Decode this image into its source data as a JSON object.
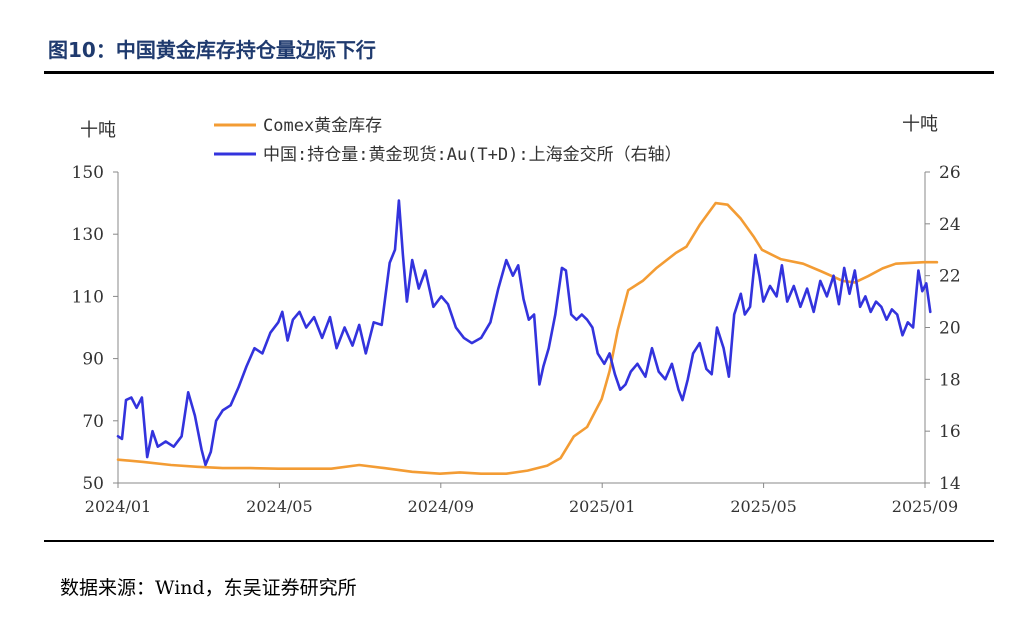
{
  "title": "图10：中国黄金库存持仓量边际下行",
  "source": "数据来源：Wind，东吴证券研究所",
  "chart_data": {
    "type": "line",
    "title": "图10：中国黄金库存持仓量边际下行",
    "x_ticks": [
      "2024/01",
      "2024/05",
      "2024/09",
      "2025/01",
      "2025/05",
      "2025/09"
    ],
    "x_range": [
      "2024-01-01",
      "2025-09-01"
    ],
    "y_left": {
      "unit": "十吨",
      "range": [
        50,
        150
      ],
      "ticks": [
        "50",
        "70",
        "90",
        "110",
        "130",
        "150"
      ]
    },
    "y_right": {
      "unit": "十吨",
      "range": [
        14,
        26
      ],
      "ticks": [
        "14",
        "16",
        "18",
        "20",
        "22",
        "24",
        "26"
      ]
    },
    "legend_position": "top-center",
    "grid": false,
    "series": [
      {
        "name": "Comex黄金库存",
        "axis": "left",
        "color": "#f39c34",
        "points": [
          [
            "2024-01-01",
            57.5
          ],
          [
            "2024-01-20",
            56.8
          ],
          [
            "2024-02-10",
            55.8
          ],
          [
            "2024-03-01",
            55.2
          ],
          [
            "2024-03-20",
            54.8
          ],
          [
            "2024-04-10",
            54.8
          ],
          [
            "2024-05-01",
            54.6
          ],
          [
            "2024-05-20",
            54.6
          ],
          [
            "2024-06-10",
            54.6
          ],
          [
            "2024-07-01",
            55.8
          ],
          [
            "2024-07-20",
            54.8
          ],
          [
            "2024-08-10",
            53.6
          ],
          [
            "2024-08-31",
            53.0
          ],
          [
            "2024-09-15",
            53.4
          ],
          [
            "2024-10-01",
            53.0
          ],
          [
            "2024-10-20",
            53.0
          ],
          [
            "2024-11-05",
            54.0
          ],
          [
            "2024-11-20",
            55.6
          ],
          [
            "2024-11-30",
            58.0
          ],
          [
            "2024-12-10",
            65.0
          ],
          [
            "2024-12-20",
            68.0
          ],
          [
            "2024-12-31",
            77.0
          ],
          [
            "2025-01-06",
            86.0
          ],
          [
            "2025-01-12",
            99.0
          ],
          [
            "2025-01-20",
            112.0
          ],
          [
            "2025-01-31",
            115.0
          ],
          [
            "2025-02-10",
            119.0
          ],
          [
            "2025-02-25",
            124.0
          ],
          [
            "2025-03-05",
            126.0
          ],
          [
            "2025-03-15",
            133.0
          ],
          [
            "2025-03-27",
            140.0
          ],
          [
            "2025-04-05",
            139.5
          ],
          [
            "2025-04-15",
            135.0
          ],
          [
            "2025-04-25",
            129.0
          ],
          [
            "2025-05-01",
            125.0
          ],
          [
            "2025-05-15",
            122.0
          ],
          [
            "2025-06-01",
            120.5
          ],
          [
            "2025-06-15",
            118.0
          ],
          [
            "2025-07-01",
            115.0
          ],
          [
            "2025-07-10",
            114.5
          ],
          [
            "2025-07-20",
            116.5
          ],
          [
            "2025-07-31",
            119.0
          ],
          [
            "2025-08-10",
            120.5
          ],
          [
            "2025-08-31",
            121.0
          ],
          [
            "2025-09-10",
            121.0
          ]
        ]
      },
      {
        "name": "中国:持仓量:黄金现货:Au(T+D):上海金交所（右轴）",
        "axis": "right",
        "color": "#3333dd",
        "points": [
          [
            "2024-01-01",
            15.8
          ],
          [
            "2024-01-04",
            15.7
          ],
          [
            "2024-01-07",
            17.2
          ],
          [
            "2024-01-11",
            17.3
          ],
          [
            "2024-01-15",
            16.9
          ],
          [
            "2024-01-19",
            17.3
          ],
          [
            "2024-01-23",
            15.0
          ],
          [
            "2024-01-27",
            16.0
          ],
          [
            "2024-01-31",
            15.4
          ],
          [
            "2024-02-06",
            15.6
          ],
          [
            "2024-02-12",
            15.4
          ],
          [
            "2024-02-18",
            15.8
          ],
          [
            "2024-02-23",
            17.5
          ],
          [
            "2024-02-28",
            16.6
          ],
          [
            "2024-03-04",
            15.3
          ],
          [
            "2024-03-07",
            14.7
          ],
          [
            "2024-03-11",
            15.2
          ],
          [
            "2024-03-15",
            16.4
          ],
          [
            "2024-03-20",
            16.8
          ],
          [
            "2024-03-26",
            17.0
          ],
          [
            "2024-04-01",
            17.7
          ],
          [
            "2024-04-07",
            18.5
          ],
          [
            "2024-04-13",
            19.2
          ],
          [
            "2024-04-19",
            19.0
          ],
          [
            "2024-04-25",
            19.8
          ],
          [
            "2024-05-01",
            20.2
          ],
          [
            "2024-05-04",
            20.6
          ],
          [
            "2024-05-08",
            19.5
          ],
          [
            "2024-05-12",
            20.3
          ],
          [
            "2024-05-17",
            20.6
          ],
          [
            "2024-05-22",
            20.0
          ],
          [
            "2024-05-28",
            20.4
          ],
          [
            "2024-06-03",
            19.6
          ],
          [
            "2024-06-09",
            20.4
          ],
          [
            "2024-06-14",
            19.2
          ],
          [
            "2024-06-20",
            20.0
          ],
          [
            "2024-06-26",
            19.3
          ],
          [
            "2024-07-01",
            20.1
          ],
          [
            "2024-07-06",
            19.0
          ],
          [
            "2024-07-12",
            20.2
          ],
          [
            "2024-07-18",
            20.1
          ],
          [
            "2024-07-24",
            22.5
          ],
          [
            "2024-07-28",
            23.0
          ],
          [
            "2024-07-31",
            24.9
          ],
          [
            "2024-08-03",
            22.8
          ],
          [
            "2024-08-06",
            21.0
          ],
          [
            "2024-08-10",
            22.6
          ],
          [
            "2024-08-15",
            21.5
          ],
          [
            "2024-08-20",
            22.2
          ],
          [
            "2024-08-26",
            20.8
          ],
          [
            "2024-09-01",
            21.2
          ],
          [
            "2024-09-06",
            20.9
          ],
          [
            "2024-09-12",
            20.0
          ],
          [
            "2024-09-18",
            19.6
          ],
          [
            "2024-09-24",
            19.4
          ],
          [
            "2024-10-01",
            19.6
          ],
          [
            "2024-10-08",
            20.2
          ],
          [
            "2024-10-14",
            21.5
          ],
          [
            "2024-10-20",
            22.6
          ],
          [
            "2024-10-25",
            22.0
          ],
          [
            "2024-10-29",
            22.4
          ],
          [
            "2024-11-02",
            21.1
          ],
          [
            "2024-11-06",
            20.3
          ],
          [
            "2024-11-10",
            20.5
          ],
          [
            "2024-11-14",
            17.8
          ],
          [
            "2024-11-17",
            18.5
          ],
          [
            "2024-11-21",
            19.2
          ],
          [
            "2024-11-26",
            20.5
          ],
          [
            "2024-12-01",
            22.3
          ],
          [
            "2024-12-04",
            22.2
          ],
          [
            "2024-12-08",
            20.5
          ],
          [
            "2024-12-12",
            20.3
          ],
          [
            "2024-12-16",
            20.5
          ],
          [
            "2024-12-20",
            20.3
          ],
          [
            "2024-12-24",
            20.0
          ],
          [
            "2024-12-28",
            19.0
          ],
          [
            "2025-01-02",
            18.6
          ],
          [
            "2025-01-06",
            19.0
          ],
          [
            "2025-01-10",
            18.2
          ],
          [
            "2025-01-14",
            17.6
          ],
          [
            "2025-01-18",
            17.8
          ],
          [
            "2025-01-22",
            18.3
          ],
          [
            "2025-01-27",
            18.6
          ],
          [
            "2025-02-02",
            18.1
          ],
          [
            "2025-02-07",
            19.2
          ],
          [
            "2025-02-12",
            18.3
          ],
          [
            "2025-02-17",
            18.0
          ],
          [
            "2025-02-22",
            18.6
          ],
          [
            "2025-02-27",
            17.6
          ],
          [
            "2025-03-02",
            17.2
          ],
          [
            "2025-03-06",
            18.0
          ],
          [
            "2025-03-10",
            19.0
          ],
          [
            "2025-03-15",
            19.4
          ],
          [
            "2025-03-20",
            18.4
          ],
          [
            "2025-03-24",
            18.2
          ],
          [
            "2025-03-28",
            20.0
          ],
          [
            "2025-04-02",
            19.2
          ],
          [
            "2025-04-06",
            18.1
          ],
          [
            "2025-04-10",
            20.5
          ],
          [
            "2025-04-15",
            21.3
          ],
          [
            "2025-04-18",
            20.5
          ],
          [
            "2025-04-22",
            20.8
          ],
          [
            "2025-04-26",
            22.8
          ],
          [
            "2025-04-29",
            22.0
          ],
          [
            "2025-05-02",
            21.0
          ],
          [
            "2025-05-07",
            21.6
          ],
          [
            "2025-05-12",
            21.2
          ],
          [
            "2025-05-16",
            22.4
          ],
          [
            "2025-05-20",
            21.0
          ],
          [
            "2025-05-25",
            21.6
          ],
          [
            "2025-05-30",
            20.8
          ],
          [
            "2025-06-04",
            21.5
          ],
          [
            "2025-06-09",
            20.6
          ],
          [
            "2025-06-14",
            21.8
          ],
          [
            "2025-06-19",
            21.2
          ],
          [
            "2025-06-24",
            22.0
          ],
          [
            "2025-06-28",
            20.9
          ],
          [
            "2025-07-02",
            22.3
          ],
          [
            "2025-07-06",
            21.3
          ],
          [
            "2025-07-10",
            22.2
          ],
          [
            "2025-07-14",
            20.8
          ],
          [
            "2025-07-18",
            21.2
          ],
          [
            "2025-07-22",
            20.6
          ],
          [
            "2025-07-26",
            21.0
          ],
          [
            "2025-07-30",
            20.8
          ],
          [
            "2025-08-03",
            20.3
          ],
          [
            "2025-08-07",
            20.7
          ],
          [
            "2025-08-11",
            20.5
          ],
          [
            "2025-08-15",
            19.7
          ],
          [
            "2025-08-19",
            20.2
          ],
          [
            "2025-08-23",
            20.0
          ],
          [
            "2025-08-27",
            22.2
          ],
          [
            "2025-08-30",
            21.4
          ],
          [
            "2025-09-02",
            21.7
          ],
          [
            "2025-09-05",
            20.6
          ]
        ]
      }
    ]
  }
}
